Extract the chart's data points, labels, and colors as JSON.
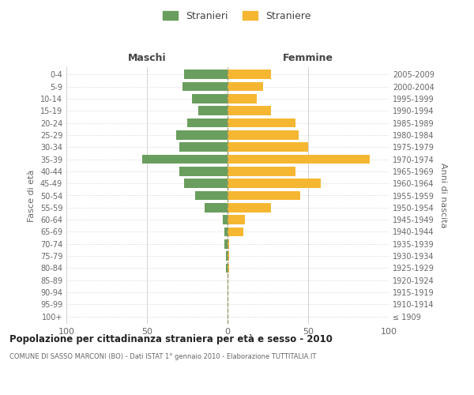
{
  "age_groups": [
    "100+",
    "95-99",
    "90-94",
    "85-89",
    "80-84",
    "75-79",
    "70-74",
    "65-69",
    "60-64",
    "55-59",
    "50-54",
    "45-49",
    "40-44",
    "35-39",
    "30-34",
    "25-29",
    "20-24",
    "15-19",
    "10-14",
    "5-9",
    "0-4"
  ],
  "birth_years": [
    "≤ 1909",
    "1910-1914",
    "1915-1919",
    "1920-1924",
    "1925-1929",
    "1930-1934",
    "1935-1939",
    "1940-1944",
    "1945-1949",
    "1950-1954",
    "1955-1959",
    "1960-1964",
    "1965-1969",
    "1970-1974",
    "1975-1979",
    "1980-1984",
    "1985-1989",
    "1990-1994",
    "1995-1999",
    "2000-2004",
    "2005-2009"
  ],
  "maschi": [
    0,
    0,
    0,
    0,
    1,
    1,
    2,
    2,
    3,
    14,
    20,
    27,
    30,
    53,
    30,
    32,
    25,
    18,
    22,
    28,
    27
  ],
  "femmine": [
    0,
    0,
    0,
    0,
    1,
    1,
    1,
    10,
    11,
    27,
    45,
    58,
    42,
    88,
    50,
    44,
    42,
    27,
    18,
    22,
    27
  ],
  "male_color": "#6a9e5e",
  "female_color": "#f5b731",
  "grid_color": "#cccccc",
  "background_color": "#ffffff",
  "title": "Popolazione per cittadinanza straniera per età e sesso - 2010",
  "subtitle": "COMUNE DI SASSO MARCONI (BO) - Dati ISTAT 1° gennaio 2010 - Elaborazione TUTTITALIA.IT",
  "ylabel_left": "Fasce di età",
  "ylabel_right": "Anni di nascita",
  "xlabel_maschi": "Maschi",
  "xlabel_femmine": "Femmine",
  "legend_male": "Stranieri",
  "legend_female": "Straniere",
  "xlim": 100,
  "dashed_line_color": "#999966"
}
